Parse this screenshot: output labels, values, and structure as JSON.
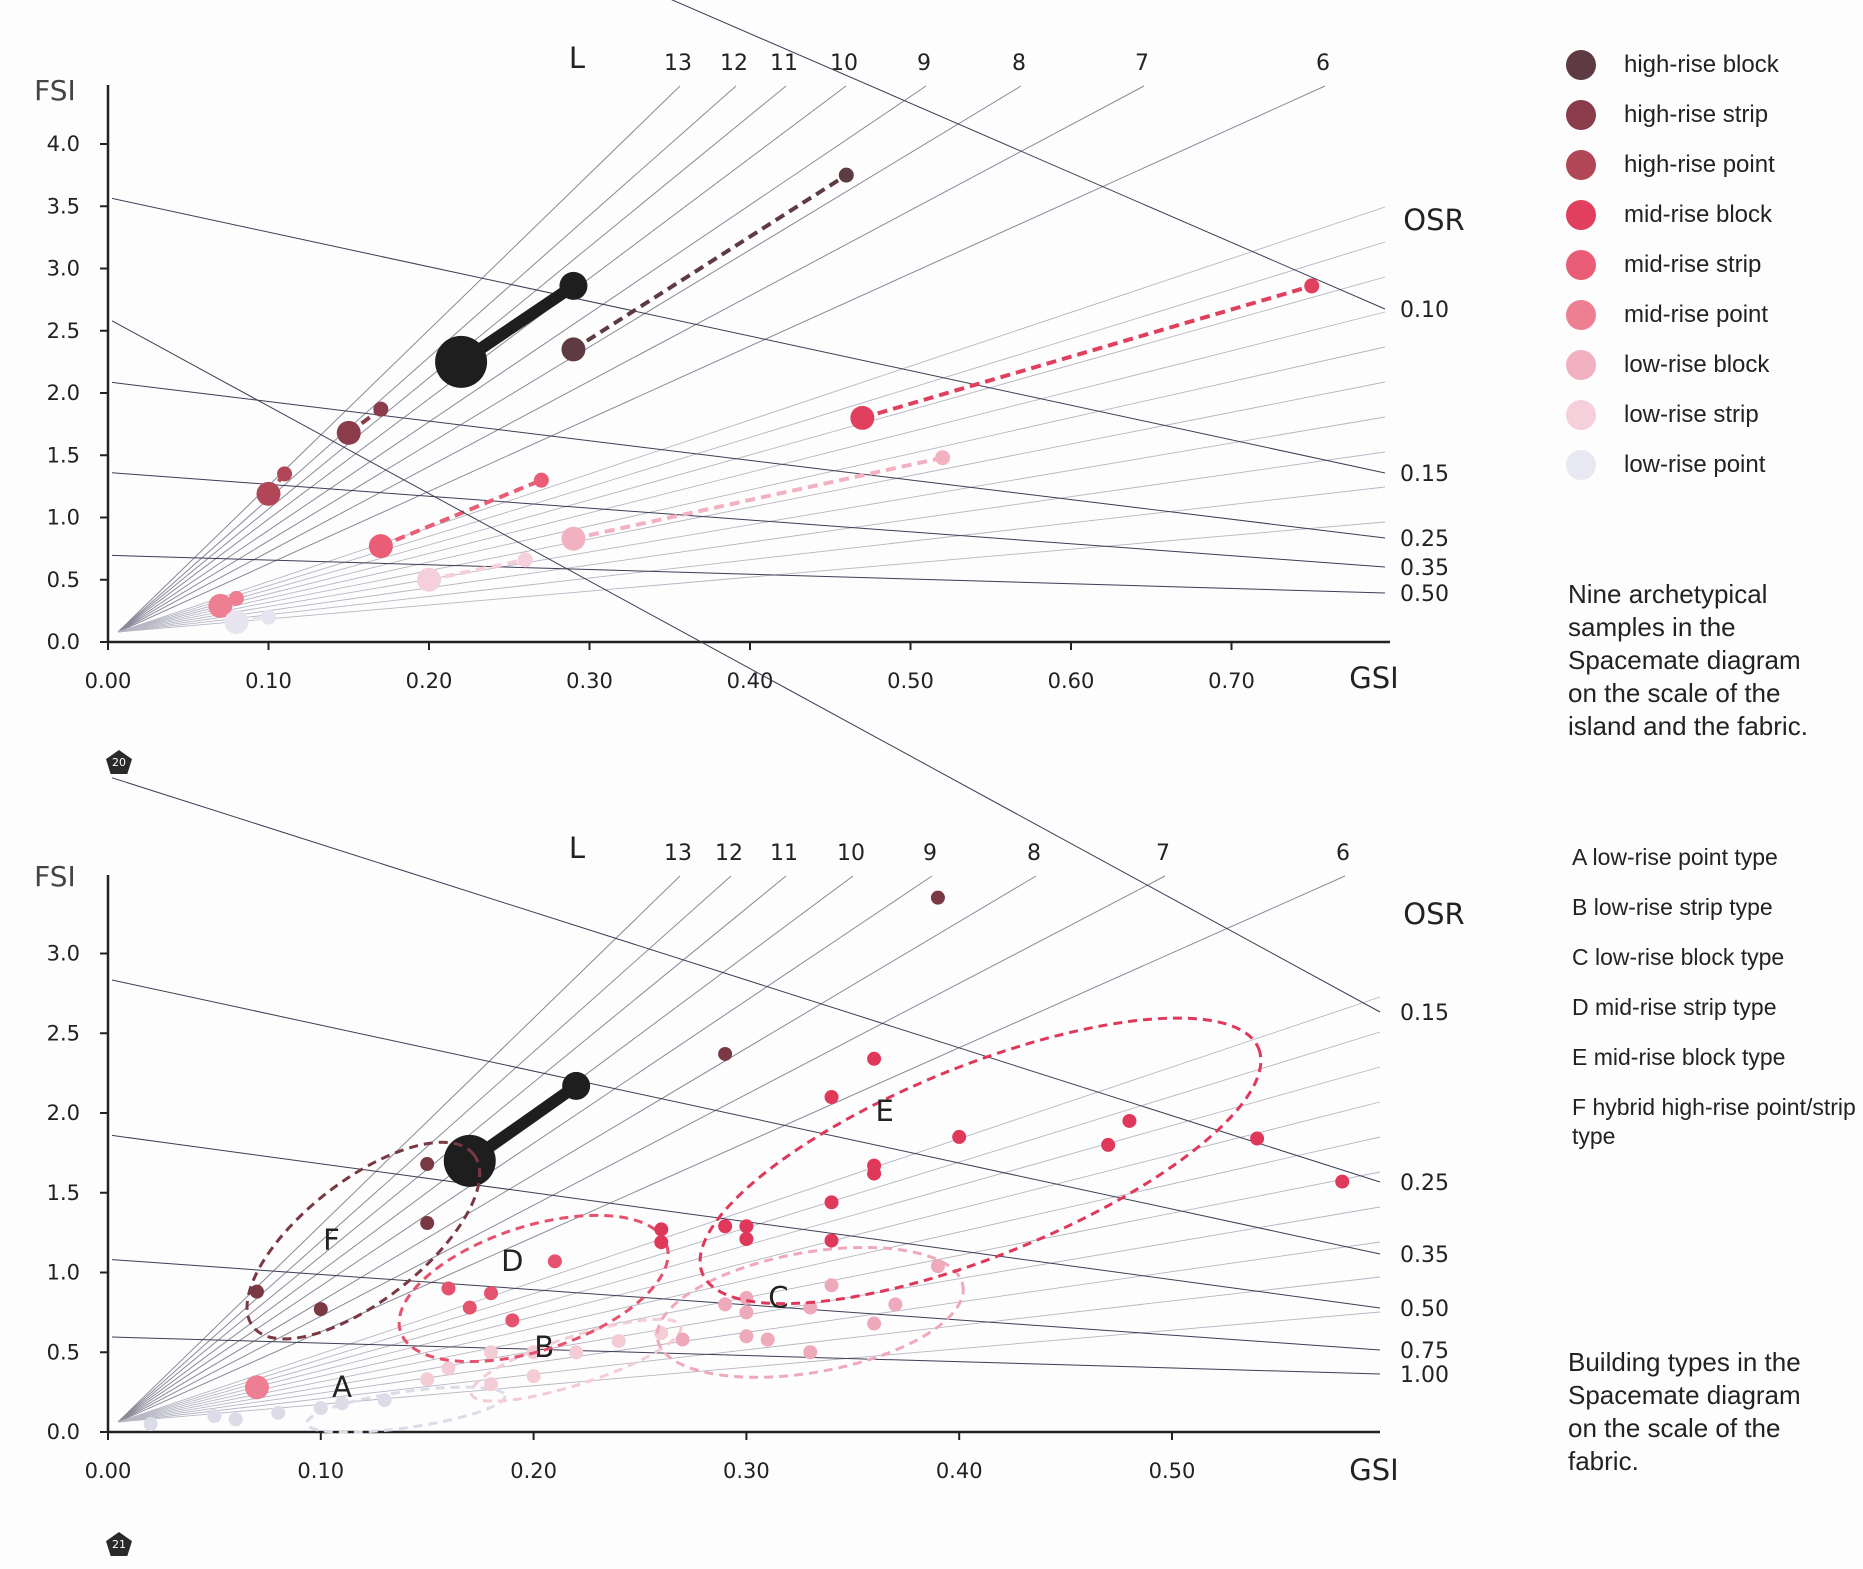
{
  "chart_data": [
    {
      "type": "scatter",
      "title": "",
      "xlabel": "GSI",
      "ylabel": "FSI",
      "xlim": [
        0,
        0.8
      ],
      "ylim": [
        0,
        4.5
      ],
      "x_ticks": [
        "0.00",
        "0.10",
        "0.20",
        "0.30",
        "0.40",
        "0.50",
        "0.60",
        "0.70"
      ],
      "y_ticks": [
        "0.0",
        "0.5",
        "1.0",
        "1.5",
        "2.0",
        "2.5",
        "3.0",
        "3.5",
        "4.0"
      ],
      "grid": false,
      "L_label": "L",
      "L_values": [
        13,
        12,
        11,
        10,
        9,
        8,
        7,
        6
      ],
      "L_tick_labels": [
        "13",
        "12",
        "11",
        "10",
        "9",
        "8",
        "7",
        "6"
      ],
      "OSR_label": "OSR",
      "OSR_values": [
        0.1,
        0.15,
        0.25,
        0.35,
        0.5
      ],
      "OSR_tick_labels": [
        "0.10",
        "0.15",
        "0.25",
        "0.35",
        "0.50"
      ],
      "legend_position": "right",
      "series": [
        {
          "name": "high-rise block",
          "color": "#5e3a42",
          "points": [
            [
              0.29,
              2.35
            ],
            [
              0.46,
              3.75
            ]
          ],
          "sizes": [
            9,
            6
          ]
        },
        {
          "name": "high-rise strip",
          "color": "#8a3c4b",
          "points": [
            [
              0.15,
              1.68
            ],
            [
              0.17,
              1.87
            ]
          ],
          "sizes": [
            9,
            6
          ]
        },
        {
          "name": "high-rise point",
          "color": "#b04656",
          "points": [
            [
              0.1,
              1.19
            ],
            [
              0.11,
              1.35
            ]
          ],
          "sizes": [
            9,
            6
          ]
        },
        {
          "name": "mid-rise block",
          "color": "#e03f5e",
          "points": [
            [
              0.47,
              1.8
            ],
            [
              0.75,
              2.86
            ]
          ],
          "sizes": [
            9,
            6
          ]
        },
        {
          "name": "mid-rise strip",
          "color": "#ea5d76",
          "points": [
            [
              0.17,
              0.77
            ],
            [
              0.27,
              1.3
            ]
          ],
          "sizes": [
            9,
            6
          ]
        },
        {
          "name": "mid-rise point",
          "color": "#ee7f93",
          "points": [
            [
              0.07,
              0.29
            ],
            [
              0.08,
              0.35
            ]
          ],
          "sizes": [
            9,
            6
          ]
        },
        {
          "name": "low-rise block",
          "color": "#f2b1c1",
          "points": [
            [
              0.29,
              0.83
            ],
            [
              0.52,
              1.48
            ]
          ],
          "sizes": [
            9,
            6
          ]
        },
        {
          "name": "low-rise strip",
          "color": "#f5d0da",
          "points": [
            [
              0.2,
              0.5
            ],
            [
              0.26,
              0.66
            ]
          ],
          "sizes": [
            9,
            6
          ]
        },
        {
          "name": "low-rise point",
          "color": "#e5e4ef",
          "points": [
            [
              0.08,
              0.16
            ],
            [
              0.1,
              0.2
            ]
          ],
          "sizes": [
            9,
            6
          ]
        }
      ],
      "hybrid": {
        "color": "#1e1e1e",
        "points": [
          [
            0.22,
            2.25
          ],
          [
            0.29,
            2.86
          ]
        ]
      }
    },
    {
      "type": "scatter",
      "title": "",
      "xlabel": "GSI",
      "ylabel": "FSI",
      "xlim": [
        0,
        0.6
      ],
      "ylim": [
        0,
        3.5
      ],
      "x_ticks": [
        "0.00",
        "0.10",
        "0.20",
        "0.30",
        "0.40",
        "0.50"
      ],
      "y_ticks": [
        "0.0",
        "0.5",
        "1.0",
        "1.5",
        "2.0",
        "2.5",
        "3.0"
      ],
      "grid": false,
      "L_label": "L",
      "L_values": [
        13,
        12,
        11,
        10,
        9,
        8,
        7,
        6
      ],
      "L_tick_labels": [
        "13",
        "12",
        "11",
        "10",
        "9",
        "8",
        "7",
        "6"
      ],
      "OSR_label": "OSR",
      "OSR_values": [
        0.15,
        0.25,
        0.35,
        0.5,
        0.75,
        1.0
      ],
      "OSR_tick_labels": [
        "0.15",
        "0.25",
        "0.35",
        "0.50",
        "0.75",
        "1.00"
      ],
      "groups": [
        {
          "label": "A",
          "name": "low-rise point type",
          "color": "#dcdbe8",
          "points": [
            [
              0.02,
              0.05
            ],
            [
              0.05,
              0.1
            ],
            [
              0.08,
              0.12
            ],
            [
              0.1,
              0.15
            ],
            [
              0.11,
              0.18
            ],
            [
              0.13,
              0.2
            ],
            [
              0.06,
              0.08
            ]
          ]
        },
        {
          "label": "B",
          "name": "low-rise strip type",
          "color": "#f4ccd6",
          "points": [
            [
              0.15,
              0.33
            ],
            [
              0.16,
              0.4
            ],
            [
              0.18,
              0.5
            ],
            [
              0.2,
              0.35
            ],
            [
              0.2,
              0.5
            ],
            [
              0.22,
              0.5
            ],
            [
              0.24,
              0.57
            ],
            [
              0.26,
              0.62
            ],
            [
              0.18,
              0.3
            ]
          ]
        },
        {
          "label": "C",
          "name": "low-rise block type",
          "color": "#eea9bb",
          "points": [
            [
              0.27,
              0.58
            ],
            [
              0.29,
              0.8
            ],
            [
              0.3,
              0.84
            ],
            [
              0.3,
              0.75
            ],
            [
              0.3,
              0.6
            ],
            [
              0.31,
              0.58
            ],
            [
              0.33,
              0.5
            ],
            [
              0.33,
              0.78
            ],
            [
              0.34,
              0.92
            ],
            [
              0.36,
              0.68
            ],
            [
              0.37,
              0.8
            ],
            [
              0.39,
              1.04
            ]
          ]
        },
        {
          "label": "D",
          "name": "mid-rise strip type",
          "color": "#e5526e",
          "points": [
            [
              0.16,
              0.9
            ],
            [
              0.17,
              0.78
            ],
            [
              0.18,
              0.87
            ],
            [
              0.19,
              0.7
            ],
            [
              0.21,
              1.07
            ]
          ]
        },
        {
          "label": "E",
          "name": "mid-rise block type",
          "color": "#e0385a",
          "points": [
            [
              0.26,
              1.27
            ],
            [
              0.26,
              1.19
            ],
            [
              0.29,
              1.29
            ],
            [
              0.3,
              1.29
            ],
            [
              0.3,
              1.21
            ],
            [
              0.34,
              1.2
            ],
            [
              0.34,
              1.44
            ],
            [
              0.34,
              2.1
            ],
            [
              0.36,
              2.34
            ],
            [
              0.36,
              1.67
            ],
            [
              0.36,
              1.62
            ],
            [
              0.4,
              1.85
            ],
            [
              0.47,
              1.8
            ],
            [
              0.48,
              1.95
            ],
            [
              0.54,
              1.84
            ],
            [
              0.58,
              1.57
            ]
          ]
        },
        {
          "label": "F",
          "name": "hybrid high-rise point/strip type",
          "color": "#7a3843",
          "points": [
            [
              0.07,
              0.88
            ],
            [
              0.1,
              0.77
            ],
            [
              0.15,
              1.31
            ],
            [
              0.15,
              1.68
            ],
            [
              0.29,
              2.37
            ],
            [
              0.39,
              3.35
            ]
          ]
        }
      ],
      "hybrid": {
        "color": "#1e1e1e",
        "points": [
          [
            0.17,
            1.7
          ],
          [
            0.22,
            2.17
          ]
        ]
      },
      "single_points": [
        {
          "x": 0.07,
          "y": 0.28,
          "color": "#ee7f93"
        }
      ]
    }
  ],
  "captions": {
    "top": "Nine archetypical samples in the Spacemate diagram on the scale of the island and the fabric.",
    "bottom": "Building types in the Spacemate diagram on the scale of the fabric."
  },
  "legend": [
    {
      "label": "high-rise block",
      "color": "#5e3a42"
    },
    {
      "label": "high-rise strip",
      "color": "#8a3c4b"
    },
    {
      "label": "high-rise point",
      "color": "#b04656"
    },
    {
      "label": "mid-rise block",
      "color": "#e03f5e"
    },
    {
      "label": "mid-rise strip",
      "color": "#ea5d76"
    },
    {
      "label": "mid-rise point",
      "color": "#ee7f93"
    },
    {
      "label": "low-rise block",
      "color": "#f2b1c1"
    },
    {
      "label": "low-rise strip",
      "color": "#f5d0da"
    },
    {
      "label": "low-rise point",
      "color": "#e8e8f2"
    }
  ],
  "type_legend": [
    {
      "letter": "A",
      "label": "low-rise point type"
    },
    {
      "letter": "B",
      "label": "low-rise strip type"
    },
    {
      "letter": "C",
      "label": "low-rise block type"
    },
    {
      "letter": "D",
      "label": "mid-rise strip type"
    },
    {
      "letter": "E",
      "label": "mid-rise block type"
    },
    {
      "letter": "F",
      "label": "hybrid high-rise point/strip type"
    }
  ],
  "badges": {
    "top": "20",
    "bottom": "21"
  }
}
